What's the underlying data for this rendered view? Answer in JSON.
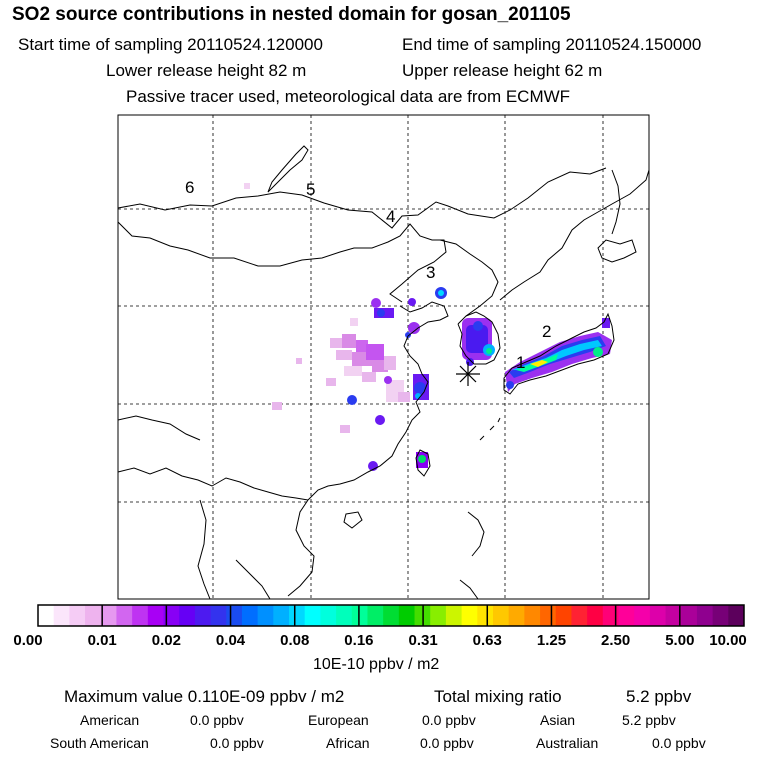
{
  "header": {
    "title": "SO2 source contributions in nested domain for gosan_201105",
    "start_label": "Start time of sampling 20110524.120000",
    "end_label": "End time of sampling 20110524.150000",
    "lower_label": "Lower release height   82 m",
    "upper_label": "Upper release height   62 m",
    "tracer_note": "Passive tracer used, meteorological data are from ECMWF"
  },
  "map": {
    "region_labels": [
      "1",
      "2",
      "3",
      "4",
      "5",
      "6"
    ],
    "receptor_marker": "asterisk-icon"
  },
  "colorbar": {
    "ticks": [
      "0.00",
      "0.01",
      "0.02",
      "0.04",
      "0.08",
      "0.16",
      "0.31",
      "0.63",
      "1.25",
      "2.50",
      "5.00",
      "10.00"
    ],
    "units": "10E-10 ppbv / m2",
    "colors": [
      "#ffffff",
      "#fbe6fb",
      "#f5ccf5",
      "#eeb3ee",
      "#e699f0",
      "#d266f0",
      "#bf33f2",
      "#a800f5",
      "#8800f5",
      "#6600f5",
      "#4d1af0",
      "#3333ee",
      "#1a4cf0",
      "#006eff",
      "#0090ff",
      "#00b0ff",
      "#00d8ff",
      "#00ffff",
      "#00ffdd",
      "#00ffbb",
      "#00ff99",
      "#00ee66",
      "#00dd33",
      "#00cc00",
      "#44dd00",
      "#88ee00",
      "#ccf500",
      "#ffff00",
      "#ffe400",
      "#ffc800",
      "#ffaa00",
      "#ff8800",
      "#ff6600",
      "#ff4400",
      "#ff2233",
      "#ff0044",
      "#ff0077",
      "#ff0099",
      "#f500aa",
      "#dd00aa",
      "#c400a0",
      "#aa0099",
      "#8f008f",
      "#770077",
      "#5c005c"
    ]
  },
  "stats": {
    "max_label": "Maximum value  0.110E-09 ppbv / m2",
    "total_label": "Total mixing ratio",
    "total_value": "5.2 ppbv",
    "american_label": "American",
    "american_value": "0.0 ppbv",
    "european_label": "European",
    "european_value": "0.0 ppbv",
    "asian_label": "Asian",
    "asian_value": "5.2 ppbv",
    "south_american_label": "South American",
    "south_american_value": "0.0 ppbv",
    "african_label": "African",
    "african_value": "0.0 ppbv",
    "australian_label": "Australian",
    "australian_value": "0.0 ppbv"
  }
}
